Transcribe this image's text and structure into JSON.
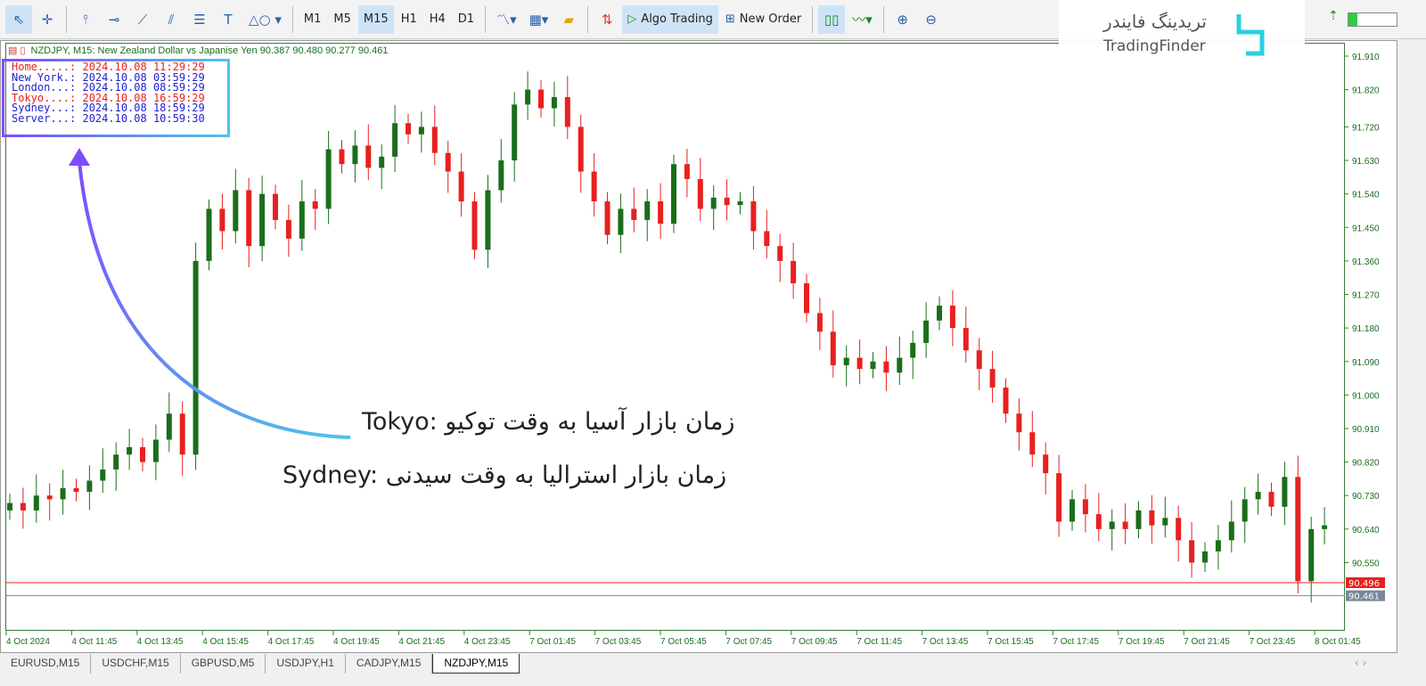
{
  "toolbar": {
    "tools": [
      "cursor-icon",
      "crosshair-icon",
      "vertical-line-icon",
      "horizontal-line-icon",
      "trendline-icon",
      "channel-icon",
      "fibonacci-icon",
      "text-icon",
      "shapes-icon"
    ],
    "timeframes": [
      "M1",
      "M5",
      "M15",
      "H1",
      "H4",
      "D1"
    ],
    "active_timeframe": "M15",
    "algo_trading": "Algo Trading",
    "new_order": "New Order"
  },
  "chart": {
    "header": "NZDJPY, M15:  New Zealand Dollar vs Japanise Yen  90.387 90.480 90.277 90.461",
    "info": [
      {
        "label": "Home.....:",
        "value": "2024.10.08 11:29:29",
        "color": "#e82020"
      },
      {
        "label": "New York.:",
        "value": "2024.10.08 03:59:29",
        "color": "#2020d0"
      },
      {
        "label": "London...:",
        "value": "2024.10.08 08:59:29",
        "color": "#2020d0"
      },
      {
        "label": "Tokyo....:",
        "value": "2024.10.08 16:59:29",
        "color": "#e82020"
      },
      {
        "label": "Sydney...:",
        "value": "2024.10.08 18:59:29",
        "color": "#2020d0"
      },
      {
        "label": "Server...:",
        "value": "2024.10.08 10:59:30",
        "color": "#2020d0"
      }
    ],
    "price_labels": [
      "91.910",
      "91.820",
      "91.720",
      "91.630",
      "91.540",
      "91.450",
      "91.360",
      "91.270",
      "91.180",
      "91.090",
      "91.000",
      "90.910",
      "90.820",
      "90.730",
      "90.640",
      "90.550"
    ],
    "time_labels": [
      "4 Oct 2024",
      "4 Oct 11:45",
      "4 Oct 13:45",
      "4 Oct 15:45",
      "4 Oct 17:45",
      "4 Oct 19:45",
      "4 Oct 21:45",
      "4 Oct 23:45",
      "7 Oct 01:45",
      "7 Oct 03:45",
      "7 Oct 05:45",
      "7 Oct 07:45",
      "7 Oct 09:45",
      "7 Oct 11:45",
      "7 Oct 13:45",
      "7 Oct 15:45",
      "7 Oct 17:45",
      "7 Oct 19:45",
      "7 Oct 21:45",
      "7 Oct 23:45",
      "8 Oct 01:45"
    ],
    "ask_line": {
      "value": "90.496",
      "color": "#e82020"
    },
    "bid_line": {
      "value": "90.461",
      "color": "#778899"
    },
    "up_color": "#1a6e1a",
    "down_color": "#e82020",
    "closes": [
      90.71,
      90.69,
      90.73,
      90.72,
      90.75,
      90.74,
      90.77,
      90.8,
      90.84,
      90.86,
      90.82,
      90.88,
      90.95,
      90.84,
      91.36,
      91.5,
      91.44,
      91.55,
      91.4,
      91.54,
      91.47,
      91.42,
      91.52,
      91.5,
      91.66,
      91.62,
      91.67,
      91.61,
      91.64,
      91.73,
      91.7,
      91.72,
      91.65,
      91.6,
      91.52,
      91.39,
      91.55,
      91.63,
      91.78,
      91.82,
      91.77,
      91.8,
      91.72,
      91.6,
      91.52,
      91.43,
      91.5,
      91.47,
      91.52,
      91.46,
      91.62,
      91.58,
      91.5,
      91.53,
      91.51,
      91.52,
      91.44,
      91.4,
      91.36,
      91.3,
      91.22,
      91.17,
      91.08,
      91.1,
      91.07,
      91.09,
      91.06,
      91.1,
      91.14,
      91.2,
      91.24,
      91.18,
      91.12,
      91.07,
      91.02,
      90.95,
      90.9,
      90.84,
      90.79,
      90.66,
      90.72,
      90.68,
      90.64,
      90.66,
      90.64,
      90.69,
      90.65,
      90.67,
      90.61,
      90.55,
      90.58,
      90.61,
      90.66,
      90.72,
      90.74,
      90.7,
      90.78,
      90.5,
      90.64,
      90.65
    ]
  },
  "annotations": {
    "tokyo": "Tokyo: زمان بازار آسیا به وقت توکیو",
    "sydney": "Sydney: زمان بازار استرالیا به وقت سیدنی"
  },
  "watermark": {
    "fa": "تریدینگ فایندر",
    "en": "TradingFinder"
  },
  "tabs": [
    "EURUSD,M15",
    "USDCHF,M15",
    "GBPUSD,M5",
    "USDJPY,H1",
    "CADJPY,M15",
    "NZDJPY,M15"
  ],
  "active_tab": "NZDJPY,M15"
}
